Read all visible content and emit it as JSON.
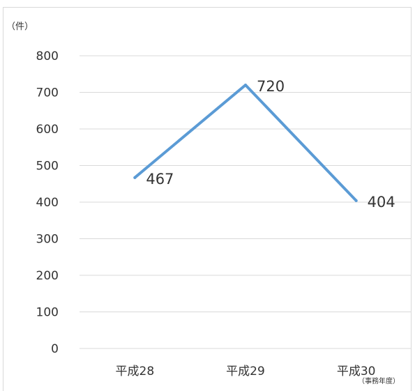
{
  "chart_data": {
    "type": "line",
    "categories": [
      "平成28",
      "平成29",
      "平成30"
    ],
    "series": [
      {
        "values": [
          467,
          720,
          404
        ]
      }
    ],
    "ylabel": "（件）",
    "xnote": "（事務年度）",
    "ylim": [
      0,
      800
    ],
    "yticks": [
      "0",
      "100",
      "200",
      "300",
      "400",
      "500",
      "600",
      "700",
      "800"
    ],
    "data_labels": [
      "467",
      "720",
      "404"
    ],
    "grid": true,
    "line_color": "#5b9bd5"
  }
}
